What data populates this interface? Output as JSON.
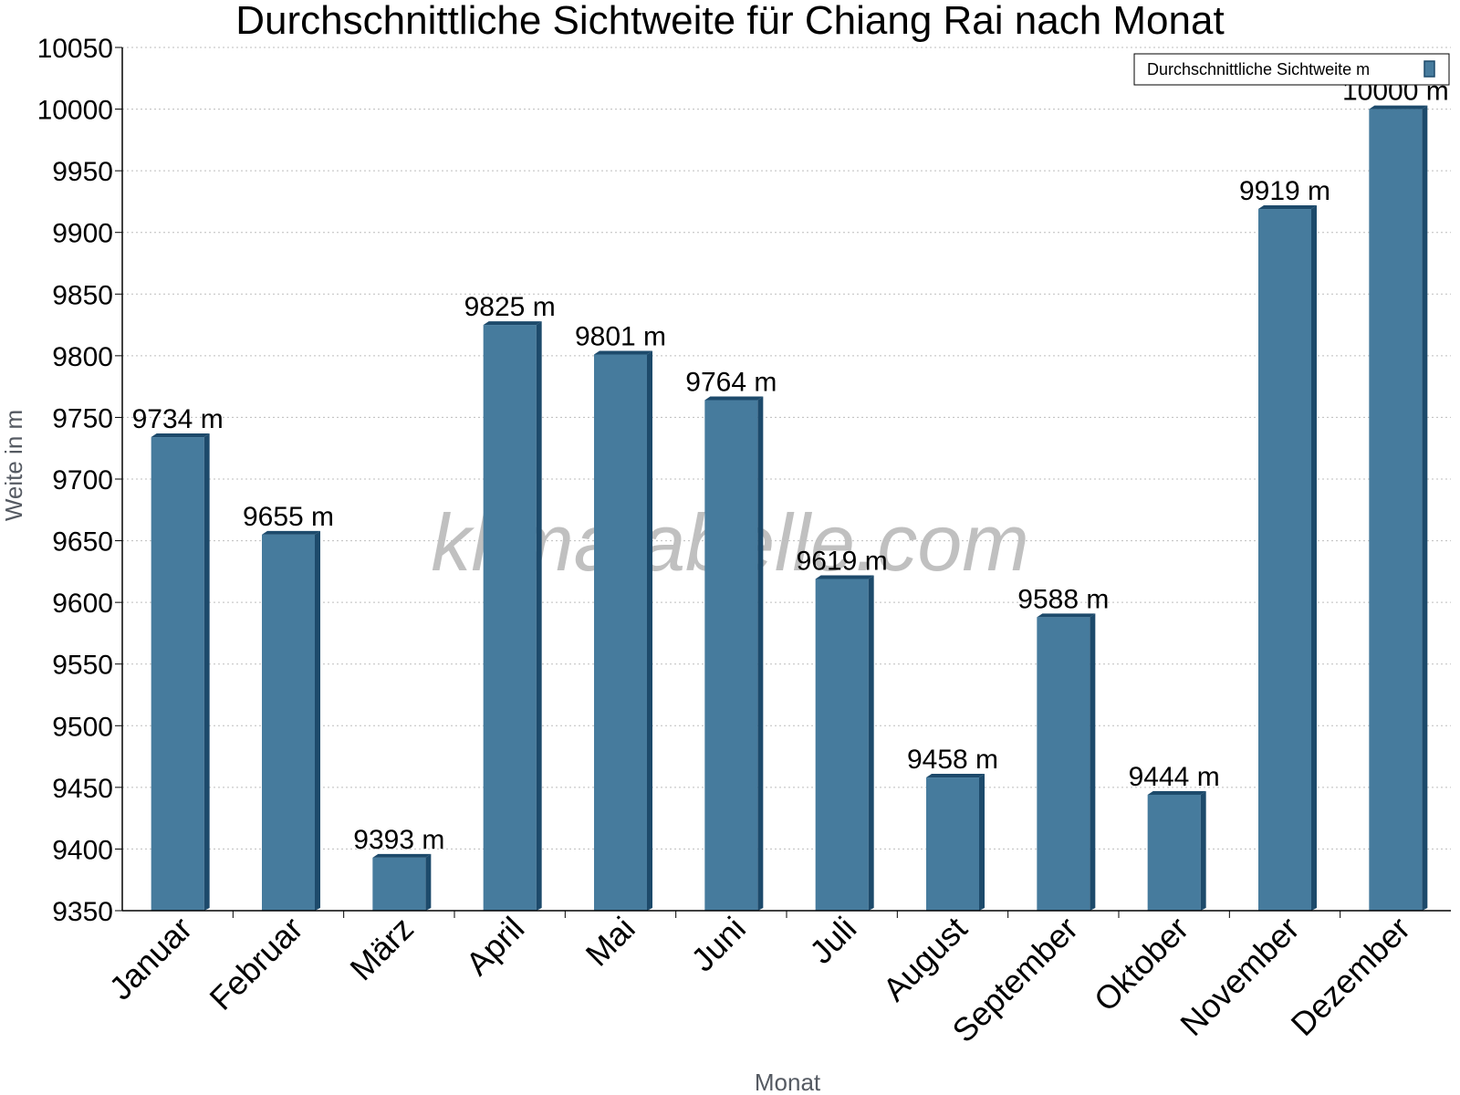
{
  "chart_data": {
    "type": "bar",
    "title": "Durchschnittliche Sichtweite für Chiang Rai nach Monat",
    "xlabel": "Monat",
    "ylabel": "Weite in m",
    "ylim": [
      9350,
      10050
    ],
    "yticks": [
      9350,
      9400,
      9450,
      9500,
      9550,
      9600,
      9650,
      9700,
      9750,
      9800,
      9850,
      9900,
      9950,
      10000,
      10050
    ],
    "grid": true,
    "legend": "top-right",
    "categories": [
      "Januar",
      "Februar",
      "März",
      "April",
      "Mai",
      "Juni",
      "Juli",
      "August",
      "September",
      "Oktober",
      "November",
      "Dezember"
    ],
    "series": [
      {
        "name": "Durchschnittliche Sichtweite m",
        "values": [
          9734,
          9655,
          9393,
          9825,
          9801,
          9764,
          9619,
          9458,
          9588,
          9444,
          9919,
          10000
        ],
        "labels": [
          "9734 m",
          "9655 m",
          "9393 m",
          "9825 m",
          "9801 m",
          "9764 m",
          "9619 m",
          "9458 m",
          "9588 m",
          "9444 m",
          "9919 m",
          "10000 m"
        ],
        "color": "#467b9d",
        "side_color": "#1d4a6b"
      }
    ],
    "watermark": "klimatabelle.com"
  }
}
